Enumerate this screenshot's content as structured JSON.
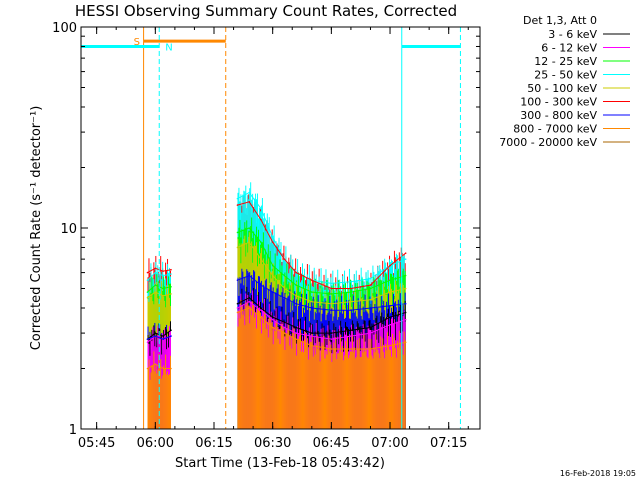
{
  "chart_data": {
    "type": "line",
    "title": "HESSI Observing Summary Count Rates, Corrected",
    "xlabel": "Start Time (13-Feb-18 05:43:42)",
    "ylabel": "Corrected Count Rate (s⁻¹ detector⁻¹)",
    "yscale": "log",
    "ylim": [
      1,
      100
    ],
    "xlim": [
      "05:41",
      "07:23"
    ],
    "x_ticks": [
      "05:45",
      "06:00",
      "06:15",
      "06:30",
      "06:45",
      "07:00",
      "07:15"
    ],
    "y_ticks": [
      "1",
      "10",
      "100"
    ],
    "legend_header": "Det 1,3, Att 0",
    "legend_position": "top-right",
    "footer_date": "16-Feb-2018 19:05",
    "series": [
      {
        "name": "3 - 6 keV",
        "color": "#000000",
        "segments": [
          {
            "t": [
              "05:58",
              "06:00",
              "06:02",
              "06:04"
            ],
            "y": [
              2.8,
              3.0,
              2.9,
              3.1
            ]
          },
          {
            "t": [
              "06:21",
              "06:24",
              "06:27",
              "06:30",
              "06:33",
              "06:36",
              "06:40",
              "06:45",
              "06:50",
              "06:55",
              "07:00",
              "07:04"
            ],
            "y": [
              4.2,
              4.5,
              4.0,
              3.6,
              3.4,
              3.2,
              3.0,
              3.0,
              3.1,
              3.2,
              3.6,
              3.8
            ]
          }
        ]
      },
      {
        "name": "6 - 12 keV",
        "color": "#ff00ff",
        "segments": [
          {
            "t": [
              "05:58",
              "06:00",
              "06:02",
              "06:04"
            ],
            "y": [
              2.7,
              2.9,
              2.8,
              2.9
            ]
          },
          {
            "t": [
              "06:21",
              "06:24",
              "06:27",
              "06:30",
              "06:33",
              "06:36",
              "06:40",
              "06:45",
              "06:50",
              "06:55",
              "07:00",
              "07:04"
            ],
            "y": [
              4.0,
              4.3,
              3.9,
              3.5,
              3.2,
              3.0,
              2.9,
              2.8,
              2.9,
              3.0,
              3.3,
              3.5
            ]
          }
        ]
      },
      {
        "name": "12 - 25 keV",
        "color": "#00ff00",
        "segments": [
          {
            "t": [
              "05:58",
              "06:00",
              "06:02",
              "06:04"
            ],
            "y": [
              4.8,
              5.2,
              5.0,
              5.1
            ]
          },
          {
            "t": [
              "06:21",
              "06:24",
              "06:27",
              "06:30",
              "06:33",
              "06:36",
              "06:40",
              "06:45",
              "06:50",
              "06:55",
              "07:00",
              "07:04"
            ],
            "y": [
              9.5,
              10.0,
              8.5,
              6.5,
              5.8,
              5.2,
              4.8,
              4.7,
              4.8,
              5.0,
              5.5,
              5.8
            ]
          }
        ]
      },
      {
        "name": "25 - 50 keV",
        "color": "#00ffff",
        "segments": [
          {
            "t": [
              "05:58",
              "06:00",
              "06:02",
              "06:04"
            ],
            "y": [
              5.5,
              6.0,
              5.8,
              5.9
            ]
          },
          {
            "t": [
              "06:21",
              "06:24",
              "06:27",
              "06:30",
              "06:33",
              "06:36",
              "06:40",
              "06:45",
              "06:50",
              "06:55",
              "07:00",
              "07:04"
            ],
            "y": [
              14.0,
              15.0,
              12.5,
              9.0,
              7.0,
              6.0,
              5.5,
              5.3,
              5.4,
              5.6,
              6.5,
              7.0
            ]
          }
        ]
      },
      {
        "name": "50 - 100 keV",
        "color": "#cccc00",
        "segments": [
          {
            "t": [
              "05:58",
              "06:00",
              "06:02",
              "06:04"
            ],
            "y": [
              4.5,
              4.8,
              4.6,
              4.7
            ]
          },
          {
            "t": [
              "06:21",
              "06:24",
              "06:27",
              "06:30",
              "06:33",
              "06:36",
              "06:40",
              "06:45",
              "06:50",
              "06:55",
              "07:00",
              "07:04"
            ],
            "y": [
              8.0,
              8.5,
              7.0,
              5.8,
              5.0,
              4.6,
              4.3,
              4.2,
              4.3,
              4.4,
              4.8,
              5.0
            ]
          }
        ]
      },
      {
        "name": "100 - 300 keV",
        "color": "#ff0000",
        "segments": [
          {
            "t": [
              "05:58",
              "06:00",
              "06:02",
              "06:04"
            ],
            "y": [
              6.0,
              6.3,
              6.1,
              6.2
            ]
          },
          {
            "t": [
              "06:21",
              "06:24",
              "06:27",
              "06:30",
              "06:33",
              "06:36",
              "06:40",
              "06:45",
              "06:50",
              "06:55",
              "07:00",
              "07:04"
            ],
            "y": [
              13.0,
              13.5,
              11.0,
              8.5,
              7.0,
              6.0,
              5.5,
              5.0,
              5.0,
              5.2,
              6.5,
              7.5
            ]
          }
        ]
      },
      {
        "name": "300 - 800 keV",
        "color": "#0000ff",
        "segments": [
          {
            "t": [
              "05:58",
              "06:00",
              "06:02",
              "06:04"
            ],
            "y": [
              2.8,
              2.9,
              2.8,
              2.9
            ]
          },
          {
            "t": [
              "06:21",
              "06:24",
              "06:27",
              "06:30",
              "06:33",
              "06:36",
              "06:40",
              "06:45",
              "06:50",
              "06:55",
              "07:00",
              "07:04"
            ],
            "y": [
              5.5,
              5.8,
              5.2,
              4.8,
              4.5,
              4.2,
              4.0,
              3.9,
              3.9,
              4.0,
              4.1,
              4.2
            ]
          }
        ]
      },
      {
        "name": "800 - 7000 keV",
        "color": "#ff8800",
        "segments": [
          {
            "t": [
              "05:58",
              "06:00",
              "06:02",
              "06:04"
            ],
            "y": [
              2.0,
              2.1,
              2.0,
              2.0
            ]
          },
          {
            "t": [
              "06:21",
              "06:24",
              "06:27",
              "06:30",
              "06:33",
              "06:36",
              "06:40",
              "06:45",
              "06:50",
              "06:55",
              "07:00",
              "07:04"
            ],
            "y": [
              3.8,
              4.0,
              3.6,
              3.2,
              3.0,
              2.8,
              2.6,
              2.5,
              2.5,
              2.5,
              2.6,
              2.7
            ]
          }
        ]
      },
      {
        "name": "7000 - 20000 keV",
        "color": "#aa6600",
        "segments": []
      }
    ],
    "annotations": {
      "saa": {
        "label": "S",
        "color": "#ff8800",
        "flag_level": 85,
        "start": "05:57",
        "end": "06:18"
      },
      "night": {
        "label": "N",
        "color": "#00ffff",
        "flag_level": 80,
        "intervals": [
          {
            "start": "05:41",
            "end": "06:01"
          },
          {
            "start": "07:03",
            "end": "07:18"
          }
        ]
      }
    }
  }
}
